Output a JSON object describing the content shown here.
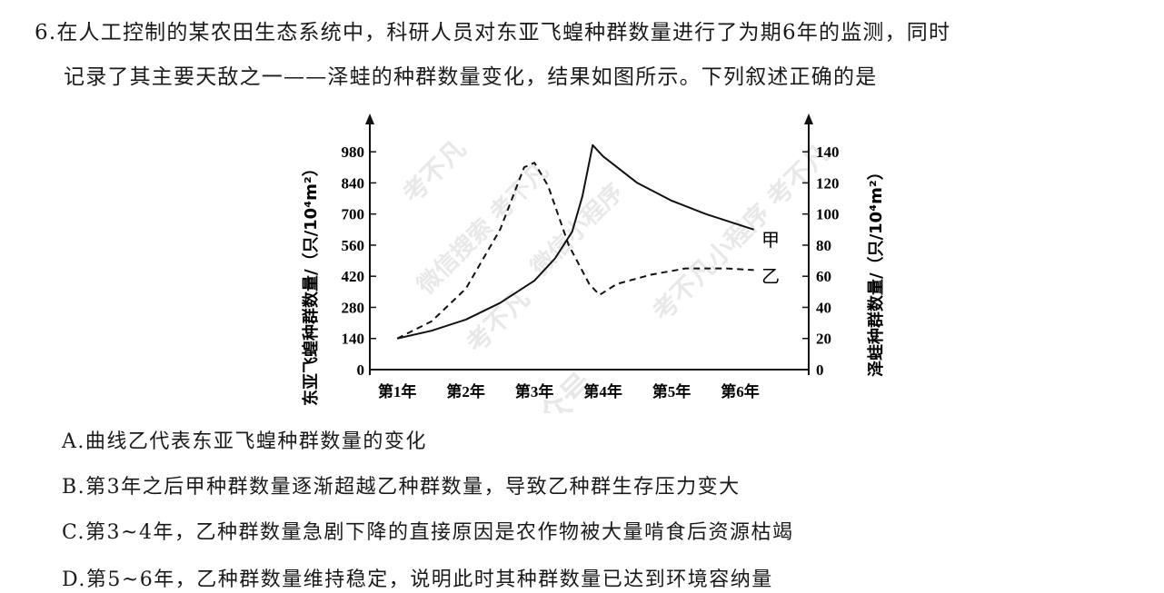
{
  "question": {
    "number": "6.",
    "line1": "在人工控制的某农田生态系统中，科研人员对东亚飞蝗种群数量进行了为期6年的监测，同时",
    "line2": "记录了其主要天敌之一——泽蛙的种群数量变化，结果如图所示。下列叙述正确的是"
  },
  "chart_data": {
    "type": "line",
    "ylabel_left": "东亚飞蝗种群数量/（只/10⁴m²）",
    "ylabel_right": "泽蛙种群数量/（只/10⁴m²）",
    "left_ticks": [
      0,
      140,
      280,
      420,
      560,
      700,
      840,
      980
    ],
    "right_ticks": [
      0,
      20,
      40,
      60,
      80,
      100,
      120,
      140
    ],
    "ylim_left": [
      0,
      1050
    ],
    "ylim_right": [
      0,
      150
    ],
    "x_categories": [
      "第1年",
      "第2年",
      "第3年",
      "第4年",
      "第5年",
      "第6年"
    ],
    "x_range": [
      0.6,
      7.0
    ],
    "series": [
      {
        "name": "甲",
        "axis": "left",
        "style": "solid",
        "points": [
          [
            1.0,
            140
          ],
          [
            1.5,
            175
          ],
          [
            2.0,
            225
          ],
          [
            2.5,
            300
          ],
          [
            3.0,
            400
          ],
          [
            3.3,
            500
          ],
          [
            3.55,
            620
          ],
          [
            3.7,
            780
          ],
          [
            3.85,
            1010
          ],
          [
            4.0,
            960
          ],
          [
            4.5,
            840
          ],
          [
            5.0,
            760
          ],
          [
            5.5,
            700
          ],
          [
            6.0,
            650
          ],
          [
            6.2,
            630
          ]
        ]
      },
      {
        "name": "乙",
        "axis": "right",
        "style": "dashed",
        "points": [
          [
            1.0,
            20
          ],
          [
            1.5,
            31
          ],
          [
            2.0,
            52
          ],
          [
            2.5,
            90
          ],
          [
            2.85,
            130
          ],
          [
            3.0,
            133
          ],
          [
            3.2,
            118
          ],
          [
            3.5,
            80
          ],
          [
            3.8,
            55
          ],
          [
            3.95,
            48
          ],
          [
            4.2,
            55
          ],
          [
            4.7,
            61
          ],
          [
            5.2,
            65
          ],
          [
            5.8,
            65
          ],
          [
            6.2,
            64
          ]
        ]
      }
    ],
    "series_labels": [
      "甲",
      "乙"
    ]
  },
  "watermark": [
    "考不凡",
    "微信搜索 考不凡",
    "微信小程序",
    "考不凡",
    "考不凡小程序 考不凡",
    "微信公众号",
    "考不凡"
  ],
  "options": [
    {
      "letter": "A.",
      "text": "曲线乙代表东亚飞蝗种群数量的变化"
    },
    {
      "letter": "B.",
      "text": "第3年之后甲种群数量逐渐超越乙种群数量，导致乙种群生存压力变大"
    },
    {
      "letter": "C.",
      "text": "第3~4年，乙种群数量急剧下降的直接原因是农作物被大量啃食后资源枯竭"
    },
    {
      "letter": "D.",
      "text": "第5~6年，乙种群数量维持稳定，说明此时其种群数量已达到环境容纳量"
    }
  ]
}
